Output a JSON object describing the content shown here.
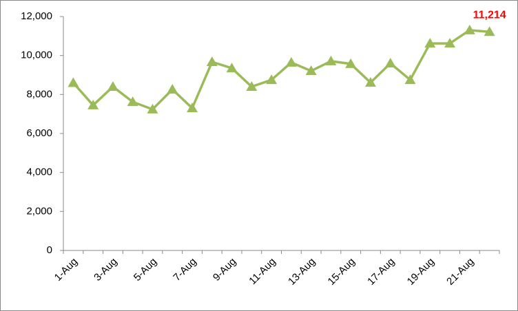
{
  "chart_data": {
    "type": "line",
    "categories": [
      "1-Aug",
      null,
      "3-Aug",
      null,
      "5-Aug",
      null,
      "7-Aug",
      null,
      "9-Aug",
      null,
      "11-Aug",
      null,
      "13-Aug",
      null,
      "15-Aug",
      null,
      "17-Aug",
      null,
      "19-Aug",
      null,
      "21-Aug",
      null
    ],
    "series": [
      {
        "color": "#9bbb59",
        "values": [
          8600,
          7450,
          8400,
          7620,
          7240,
          8260,
          7300,
          9670,
          9350,
          8400,
          8750,
          9640,
          9210,
          9710,
          9570,
          8610,
          9600,
          8750,
          10620,
          10620,
          11300,
          11214
        ],
        "value_labels": [
          null,
          null,
          null,
          null,
          null,
          null,
          null,
          null,
          null,
          null,
          null,
          null,
          null,
          null,
          null,
          null,
          null,
          null,
          null,
          null,
          null,
          "11,214"
        ],
        "label_color": "#ff0000"
      }
    ],
    "ylim": [
      0,
      12000
    ],
    "yticks": [
      0,
      {
        "value": 2000,
        "label": "2,000"
      },
      {
        "value": 4000,
        "label": "4,000"
      },
      {
        "value": 6000,
        "label": "6,000"
      },
      {
        "value": 8000,
        "label": "8,000"
      },
      {
        "value": 10000,
        "label": "10,000"
      },
      {
        "value": 12000,
        "label": "12,000"
      }
    ],
    "grid": false
  }
}
